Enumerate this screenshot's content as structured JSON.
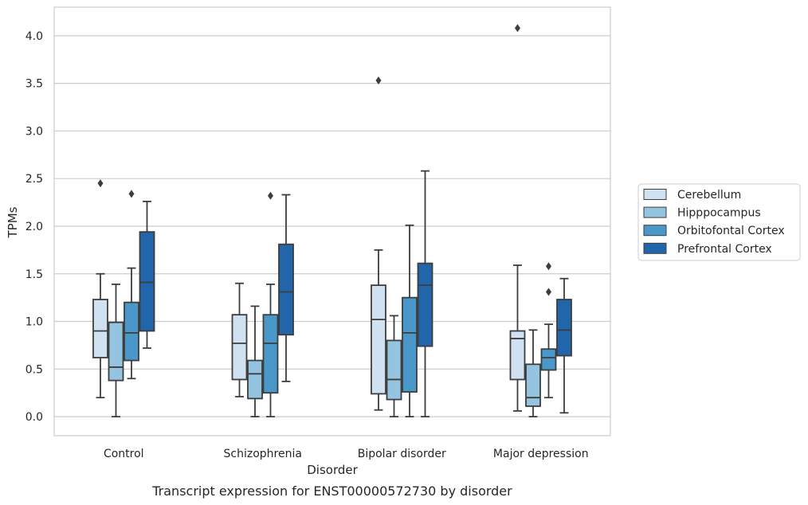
{
  "chart_data": {
    "type": "box",
    "title": "",
    "caption": "Transcript expression for ENST00000572730 by disorder",
    "xlabel": "Disorder",
    "ylabel": "TPMs",
    "ylim": [
      -0.2,
      4.3
    ],
    "yticks": [
      "0.0",
      "0.5",
      "1.0",
      "1.5",
      "2.0",
      "2.5",
      "3.0",
      "3.5",
      "4.0"
    ],
    "grid": "horizontal",
    "legend_position": "right",
    "categories": [
      "Control",
      "Schizophrenia",
      "Bipolar disorder",
      "Major depression"
    ],
    "series": [
      {
        "name": "Cerebellum",
        "color": "#d0e1f2",
        "boxes": [
          {
            "min": 0.2,
            "q1": 0.62,
            "median": 0.9,
            "q3": 1.23,
            "max": 1.5,
            "outliers": [
              2.45
            ]
          },
          {
            "min": 0.21,
            "q1": 0.39,
            "median": 0.77,
            "q3": 1.07,
            "max": 1.4,
            "outliers": []
          },
          {
            "min": 0.07,
            "q1": 0.24,
            "median": 1.02,
            "q3": 1.38,
            "max": 1.75,
            "outliers": [
              3.53
            ]
          },
          {
            "min": 0.06,
            "q1": 0.39,
            "median": 0.82,
            "q3": 0.9,
            "max": 1.59,
            "outliers": [
              4.08
            ]
          }
        ]
      },
      {
        "name": "Hipppocampus",
        "color": "#94c4df",
        "boxes": [
          {
            "min": 0.0,
            "q1": 0.38,
            "median": 0.52,
            "q3": 0.99,
            "max": 1.39,
            "outliers": []
          },
          {
            "min": 0.0,
            "q1": 0.19,
            "median": 0.45,
            "q3": 0.59,
            "max": 1.16,
            "outliers": []
          },
          {
            "min": 0.0,
            "q1": 0.18,
            "median": 0.39,
            "q3": 0.8,
            "max": 1.06,
            "outliers": []
          },
          {
            "min": 0.0,
            "q1": 0.11,
            "median": 0.2,
            "q3": 0.55,
            "max": 0.91,
            "outliers": []
          }
        ]
      },
      {
        "name": "Orbitofontal Cortex",
        "color": "#4a98c9",
        "boxes": [
          {
            "min": 0.4,
            "q1": 0.59,
            "median": 0.88,
            "q3": 1.2,
            "max": 1.56,
            "outliers": [
              2.34
            ]
          },
          {
            "min": 0.0,
            "q1": 0.25,
            "median": 0.77,
            "q3": 1.07,
            "max": 1.39,
            "outliers": [
              2.32
            ]
          },
          {
            "min": 0.0,
            "q1": 0.26,
            "median": 0.88,
            "q3": 1.25,
            "max": 2.01,
            "outliers": []
          },
          {
            "min": 0.2,
            "q1": 0.49,
            "median": 0.62,
            "q3": 0.71,
            "max": 0.97,
            "outliers": [
              1.31,
              1.58
            ]
          }
        ]
      },
      {
        "name": "Prefrontal Cortex",
        "color": "#2165ab",
        "boxes": [
          {
            "min": 0.72,
            "q1": 0.9,
            "median": 1.41,
            "q3": 1.94,
            "max": 2.26,
            "outliers": []
          },
          {
            "min": 0.37,
            "q1": 0.86,
            "median": 1.31,
            "q3": 1.81,
            "max": 2.33,
            "outliers": []
          },
          {
            "min": 0.0,
            "q1": 0.74,
            "median": 1.38,
            "q3": 1.61,
            "max": 2.58,
            "outliers": []
          },
          {
            "min": 0.04,
            "q1": 0.64,
            "median": 0.91,
            "q3": 1.23,
            "max": 1.45,
            "outliers": []
          }
        ]
      }
    ]
  }
}
